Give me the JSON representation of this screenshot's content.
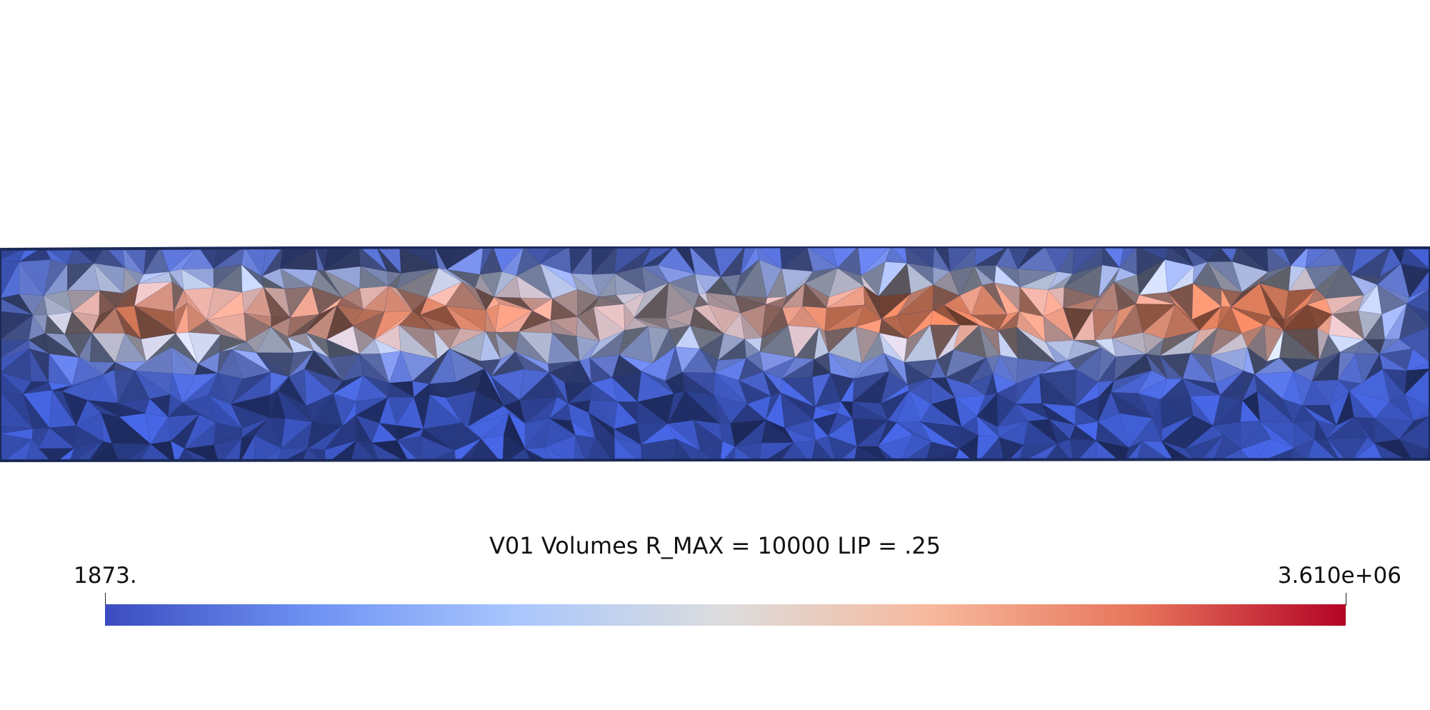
{
  "scalar_bar": {
    "title": "V01 Volumes R_MAX = 10000 LIP = .25",
    "min_label": "1873.",
    "max_label": "3.610e+06",
    "colormap": [
      "#3b4cc0",
      "#6f92f3",
      "#aac7fd",
      "#dddddd",
      "#f7b89c",
      "#e7745b",
      "#b40426"
    ]
  },
  "mesh": {
    "hot_color": "#e8835f",
    "cold_color": "#3c57c4",
    "edge_color": "#1c2a58"
  }
}
